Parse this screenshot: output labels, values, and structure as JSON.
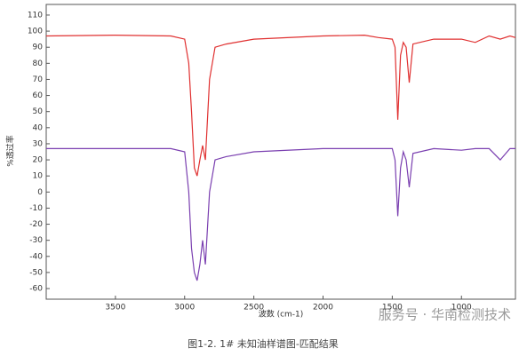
{
  "chart_data": {
    "type": "line",
    "xlabel": "波数 (cm-1)",
    "ylabel": "%透过率",
    "caption": "图1-2. 1# 未知油样谱图-匹配结果",
    "watermark": "服务号 · 华南检测技术",
    "x": [
      4000,
      3500,
      3100,
      3000,
      2970,
      2950,
      2930,
      2910,
      2890,
      2870,
      2850,
      2820,
      2780,
      2700,
      2500,
      2000,
      1700,
      1600,
      1500,
      1480,
      1460,
      1440,
      1420,
      1400,
      1377,
      1350,
      1200,
      1000,
      900,
      800,
      720,
      650,
      610
    ],
    "series": [
      {
        "name": "red",
        "color": "#e03030",
        "values": [
          97,
          97.5,
          97,
          95,
          80,
          50,
          15,
          10,
          20,
          29,
          20,
          70,
          90,
          92,
          95,
          97,
          97.5,
          96,
          95,
          90,
          45,
          85,
          93,
          90,
          68,
          92,
          95,
          95,
          93,
          97,
          95,
          97,
          96
        ]
      },
      {
        "name": "purple",
        "color": "#7a3fb0",
        "values": [
          27,
          27,
          27,
          25,
          0,
          -35,
          -50,
          -55,
          -45,
          -30,
          -45,
          0,
          20,
          22,
          25,
          27,
          27,
          27,
          27,
          20,
          -15,
          15,
          25,
          20,
          3,
          24,
          27,
          26,
          27,
          27,
          20,
          27,
          27
        ]
      }
    ],
    "xlim": [
      4000,
      610
    ],
    "ylim": [
      -66.6,
      116.6
    ],
    "xticks": [
      3500,
      3000,
      2500,
      2000,
      1500,
      1000
    ],
    "yticks": [
      -60,
      -50,
      -40,
      -30,
      -20,
      -10,
      0,
      10,
      20,
      30,
      40,
      50,
      60,
      70,
      80,
      90,
      100,
      110
    ]
  }
}
